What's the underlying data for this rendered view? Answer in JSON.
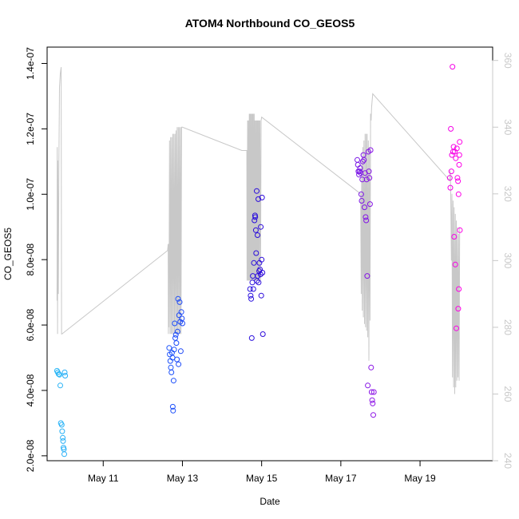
{
  "chart_data": {
    "type": "scatter",
    "title": "ATOM4 Northbound CO_GEOS5",
    "xlabel": "Date",
    "ylabel": "CO_GEOS5",
    "x_is_date": true,
    "xlim": [
      "2018-05-09T14:00",
      "2018-05-20T20:00"
    ],
    "x_ticks": [
      {
        "label": "May 11",
        "value": "2018-05-11T00:00"
      },
      {
        "label": "May 13",
        "value": "2018-05-13T00:00"
      },
      {
        "label": "May 15",
        "value": "2018-05-15T00:00"
      },
      {
        "label": "May 17",
        "value": "2018-05-17T00:00"
      },
      {
        "label": "May 19",
        "value": "2018-05-19T00:00"
      }
    ],
    "ylim": [
      1.85e-08,
      1.45e-07
    ],
    "y_ticks": [
      {
        "label": "2.0e-08",
        "value": 2e-08
      },
      {
        "label": "4.0e-08",
        "value": 4e-08
      },
      {
        "label": "6.0e-08",
        "value": 6e-08
      },
      {
        "label": "8.0e-08",
        "value": 8e-08
      },
      {
        "label": "1.0e-07",
        "value": 1e-07
      },
      {
        "label": "1.2e-07",
        "value": 1.2e-07
      },
      {
        "label": "1.4e-07",
        "value": 1.4e-07
      }
    ],
    "y2lim": [
      240,
      364
    ],
    "y2_ticks": [
      {
        "label": "240",
        "value": 240
      },
      {
        "label": "260",
        "value": 260
      },
      {
        "label": "280",
        "value": 280
      },
      {
        "label": "300",
        "value": 300
      },
      {
        "label": "320",
        "value": 320
      },
      {
        "label": "340",
        "value": 340
      },
      {
        "label": "360",
        "value": 360
      }
    ],
    "grid": false,
    "colors": {
      "line": "#c8c8c8",
      "points_gradient": [
        "#29b6f6",
        "#1a5cff",
        "#2b0bdb",
        "#7a16e6",
        "#ff00e6"
      ]
    },
    "points": [
      [
        "2018-05-09T20:00",
        4.6e-08
      ],
      [
        "2018-05-09T20:30",
        4.55e-08
      ],
      [
        "2018-05-09T21:00",
        4.5e-08
      ],
      [
        "2018-05-09T21:30",
        4.48e-08
      ],
      [
        "2018-05-09T22:00",
        4.15e-08
      ],
      [
        "2018-05-09T22:20",
        3e-08
      ],
      [
        "2018-05-09T22:50",
        2.95e-08
      ],
      [
        "2018-05-09T23:10",
        2.75e-08
      ],
      [
        "2018-05-09T23:30",
        2.55e-08
      ],
      [
        "2018-05-09T23:40",
        2.45e-08
      ],
      [
        "2018-05-09T23:55",
        2.25e-08
      ],
      [
        "2018-05-10T00:10",
        2.2e-08
      ],
      [
        "2018-05-10T00:25",
        2.05e-08
      ],
      [
        "2018-05-10T00:40",
        4.55e-08
      ],
      [
        "2018-05-10T00:55",
        4.45e-08
      ],
      [
        "2018-05-12T16:00",
        5.3e-08
      ],
      [
        "2018-05-12T16:20",
        5.1e-08
      ],
      [
        "2018-05-12T16:40",
        4.9e-08
      ],
      [
        "2018-05-12T17:00",
        4.7e-08
      ],
      [
        "2018-05-12T17:20",
        4.55e-08
      ],
      [
        "2018-05-12T17:40",
        5.15e-08
      ],
      [
        "2018-05-12T18:00",
        5e-08
      ],
      [
        "2018-05-12T18:10",
        3.5e-08
      ],
      [
        "2018-05-12T18:20",
        3.38e-08
      ],
      [
        "2018-05-12T18:40",
        4.3e-08
      ],
      [
        "2018-05-12T19:00",
        5.25e-08
      ],
      [
        "2018-05-12T19:20",
        6.05e-08
      ],
      [
        "2018-05-12T19:40",
        5.6e-08
      ],
      [
        "2018-05-12T20:00",
        5.7e-08
      ],
      [
        "2018-05-12T20:20",
        5.45e-08
      ],
      [
        "2018-05-12T20:40",
        4.95e-08
      ],
      [
        "2018-05-12T21:00",
        5.8e-08
      ],
      [
        "2018-05-12T21:20",
        6.8e-08
      ],
      [
        "2018-05-12T21:40",
        4.8e-08
      ],
      [
        "2018-05-12T22:00",
        6.3e-08
      ],
      [
        "2018-05-12T22:20",
        6.7e-08
      ],
      [
        "2018-05-12T22:40",
        6.1e-08
      ],
      [
        "2018-05-12T23:00",
        5.2e-08
      ],
      [
        "2018-05-12T23:20",
        6.4e-08
      ],
      [
        "2018-05-12T23:40",
        6.2e-08
      ],
      [
        "2018-05-13T00:00",
        6.05e-08
      ],
      [
        "2018-05-14T17:00",
        7.1e-08
      ],
      [
        "2018-05-14T17:20",
        6.9e-08
      ],
      [
        "2018-05-14T17:40",
        6.8e-08
      ],
      [
        "2018-05-14T18:00",
        5.6e-08
      ],
      [
        "2018-05-14T18:20",
        7.3e-08
      ],
      [
        "2018-05-14T18:40",
        7.5e-08
      ],
      [
        "2018-05-14T19:00",
        7.1e-08
      ],
      [
        "2018-05-14T19:20",
        7.9e-08
      ],
      [
        "2018-05-14T19:40",
        9.2e-08
      ],
      [
        "2018-05-14T20:00",
        9.35e-08
      ],
      [
        "2018-05-14T20:10",
        9.3e-08
      ],
      [
        "2018-05-14T20:30",
        8.9e-08
      ],
      [
        "2018-05-14T20:40",
        8.2e-08
      ],
      [
        "2018-05-14T21:00",
        1.01e-07
      ],
      [
        "2018-05-14T21:10",
        7.35e-08
      ],
      [
        "2018-05-14T21:30",
        8.75e-08
      ],
      [
        "2018-05-14T21:40",
        7.5e-08
      ],
      [
        "2018-05-14T22:00",
        9.85e-08
      ],
      [
        "2018-05-14T22:10",
        7.3e-08
      ],
      [
        "2018-05-14T22:30",
        7.65e-08
      ],
      [
        "2018-05-14T22:40",
        7.9e-08
      ],
      [
        "2018-05-14T23:00",
        7.7e-08
      ],
      [
        "2018-05-14T23:20",
        7.55e-08
      ],
      [
        "2018-05-14T23:30",
        9e-08
      ],
      [
        "2018-05-14T23:45",
        6.9e-08
      ],
      [
        "2018-05-15T00:00",
        8e-08
      ],
      [
        "2018-05-15T00:15",
        9.9e-08
      ],
      [
        "2018-05-15T00:30",
        7.6e-08
      ],
      [
        "2018-05-15T00:45",
        5.72e-08
      ],
      [
        "2018-05-17T10:00",
        1.105e-07
      ],
      [
        "2018-05-17T10:20",
        1.09e-07
      ],
      [
        "2018-05-17T10:40",
        1.07e-07
      ],
      [
        "2018-05-17T11:00",
        1.06e-07
      ],
      [
        "2018-05-17T11:20",
        1.07e-07
      ],
      [
        "2018-05-17T11:40",
        1.08e-07
      ],
      [
        "2018-05-17T12:00",
        1.065e-07
      ],
      [
        "2018-05-17T12:20",
        1e-07
      ],
      [
        "2018-05-17T12:40",
        9.8e-08
      ],
      [
        "2018-05-17T13:00",
        1.045e-07
      ],
      [
        "2018-05-17T13:20",
        1.1e-07
      ],
      [
        "2018-05-17T13:40",
        1.12e-07
      ],
      [
        "2018-05-17T14:00",
        1.105e-07
      ],
      [
        "2018-05-17T14:20",
        9.6e-08
      ],
      [
        "2018-05-17T14:40",
        1.065e-07
      ],
      [
        "2018-05-17T15:00",
        9.3e-08
      ],
      [
        "2018-05-17T15:20",
        9.2e-08
      ],
      [
        "2018-05-17T15:40",
        1.045e-07
      ],
      [
        "2018-05-17T16:00",
        7.5e-08
      ],
      [
        "2018-05-17T16:20",
        4.15e-08
      ],
      [
        "2018-05-17T16:40",
        1.13e-07
      ],
      [
        "2018-05-17T17:00",
        1.07e-07
      ],
      [
        "2018-05-17T17:20",
        1.05e-07
      ],
      [
        "2018-05-17T17:40",
        9.7e-08
      ],
      [
        "2018-05-17T18:00",
        1.135e-07
      ],
      [
        "2018-05-17T18:20",
        4.7e-08
      ],
      [
        "2018-05-17T18:40",
        3.95e-08
      ],
      [
        "2018-05-17T19:00",
        3.7e-08
      ],
      [
        "2018-05-17T19:20",
        3.6e-08
      ],
      [
        "2018-05-17T19:40",
        3.25e-08
      ],
      [
        "2018-05-17T20:00",
        3.95e-08
      ],
      [
        "2018-05-19T18:00",
        1.05e-07
      ],
      [
        "2018-05-19T18:20",
        1.02e-07
      ],
      [
        "2018-05-19T18:40",
        1.2e-07
      ],
      [
        "2018-05-19T19:00",
        1.07e-07
      ],
      [
        "2018-05-19T19:20",
        1.12e-07
      ],
      [
        "2018-05-19T19:40",
        1.39e-07
      ],
      [
        "2018-05-19T20:00",
        1.13e-07
      ],
      [
        "2018-05-19T20:20",
        1.145e-07
      ],
      [
        "2018-05-19T20:40",
        8.7e-08
      ],
      [
        "2018-05-19T21:00",
        1.13e-07
      ],
      [
        "2018-05-19T21:20",
        7.85e-08
      ],
      [
        "2018-05-19T21:40",
        1.11e-07
      ],
      [
        "2018-05-19T22:00",
        5.9e-08
      ],
      [
        "2018-05-19T22:20",
        1.14e-07
      ],
      [
        "2018-05-19T22:40",
        1.05e-07
      ],
      [
        "2018-05-19T23:00",
        1.04e-07
      ],
      [
        "2018-05-19T23:10",
        6.5e-08
      ],
      [
        "2018-05-19T23:20",
        1e-07
      ],
      [
        "2018-05-19T23:30",
        7.1e-08
      ],
      [
        "2018-05-19T23:40",
        1.09e-07
      ],
      [
        "2018-05-19T23:50",
        1.12e-07
      ],
      [
        "2018-05-20T00:00",
        1.16e-07
      ],
      [
        "2018-05-20T00:10",
        8.9e-08
      ]
    ],
    "line": [
      [
        "2018-05-09T20:00",
        288
      ],
      [
        "2018-05-09T20:10",
        334
      ],
      [
        "2018-05-09T20:20",
        278
      ],
      [
        "2018-05-09T20:30",
        330
      ],
      [
        "2018-05-09T20:50",
        290
      ],
      [
        "2018-05-09T21:10",
        330
      ],
      [
        "2018-05-09T21:30",
        352
      ],
      [
        "2018-05-09T22:00",
        356
      ],
      [
        "2018-05-09T22:30",
        358
      ],
      [
        "2018-05-09T22:45",
        278
      ],
      [
        "2018-05-09T23:00",
        278
      ],
      [
        "2018-05-12T15:00",
        303
      ],
      [
        "2018-05-12T15:20",
        305
      ],
      [
        "2018-05-12T15:30",
        278
      ],
      [
        "2018-05-12T15:40",
        305
      ],
      [
        "2018-05-12T15:50",
        280
      ],
      [
        "2018-05-12T16:10",
        336
      ],
      [
        "2018-05-12T16:30",
        278
      ],
      [
        "2018-05-12T16:50",
        337
      ],
      [
        "2018-05-12T17:10",
        278
      ],
      [
        "2018-05-12T17:30",
        337
      ],
      [
        "2018-05-12T17:50",
        278
      ],
      [
        "2018-05-12T18:10",
        338
      ],
      [
        "2018-05-12T18:30",
        278
      ],
      [
        "2018-05-12T18:50",
        338
      ],
      [
        "2018-05-12T19:10",
        278
      ],
      [
        "2018-05-12T19:30",
        338
      ],
      [
        "2018-05-12T19:50",
        278
      ],
      [
        "2018-05-12T20:10",
        339
      ],
      [
        "2018-05-12T20:30",
        278
      ],
      [
        "2018-05-12T20:50",
        340
      ],
      [
        "2018-05-12T21:10",
        278
      ],
      [
        "2018-05-12T21:30",
        340
      ],
      [
        "2018-05-12T21:50",
        278
      ],
      [
        "2018-05-12T22:10",
        340
      ],
      [
        "2018-05-12T22:30",
        278
      ],
      [
        "2018-05-12T22:50",
        340
      ],
      [
        "2018-05-12T23:10",
        278
      ],
      [
        "2018-05-12T23:30",
        340
      ],
      [
        "2018-05-13T00:00",
        340
      ],
      [
        "2018-05-14T12:00",
        333
      ],
      [
        "2018-05-14T15:00",
        333
      ],
      [
        "2018-05-14T15:10",
        294
      ],
      [
        "2018-05-14T15:30",
        342
      ],
      [
        "2018-05-14T15:40",
        294
      ],
      [
        "2018-05-14T16:00",
        342
      ],
      [
        "2018-05-14T16:10",
        294
      ],
      [
        "2018-05-14T16:30",
        344
      ],
      [
        "2018-05-14T16:40",
        294
      ],
      [
        "2018-05-14T17:00",
        344
      ],
      [
        "2018-05-14T17:10",
        294
      ],
      [
        "2018-05-14T17:30",
        344
      ],
      [
        "2018-05-14T17:40",
        294
      ],
      [
        "2018-05-14T18:00",
        344
      ],
      [
        "2018-05-14T18:10",
        294
      ],
      [
        "2018-05-14T18:30",
        344
      ],
      [
        "2018-05-14T18:40",
        294
      ],
      [
        "2018-05-14T19:00",
        344
      ],
      [
        "2018-05-14T19:10",
        294
      ],
      [
        "2018-05-14T19:30",
        344
      ],
      [
        "2018-05-14T19:40",
        294
      ],
      [
        "2018-05-14T20:00",
        342
      ],
      [
        "2018-05-14T20:10",
        294
      ],
      [
        "2018-05-14T20:30",
        342
      ],
      [
        "2018-05-14T20:40",
        294
      ],
      [
        "2018-05-14T21:00",
        342
      ],
      [
        "2018-05-14T21:10",
        294
      ],
      [
        "2018-05-14T21:30",
        342
      ],
      [
        "2018-05-14T21:40",
        294
      ],
      [
        "2018-05-14T22:00",
        342
      ],
      [
        "2018-05-14T22:10",
        294
      ],
      [
        "2018-05-14T22:30",
        342
      ],
      [
        "2018-05-14T22:40",
        294
      ],
      [
        "2018-05-14T23:00",
        342
      ],
      [
        "2018-05-14T23:20",
        294
      ],
      [
        "2018-05-14T23:40",
        342
      ],
      [
        "2018-05-15T00:00",
        343
      ],
      [
        "2018-05-17T12:00",
        320
      ],
      [
        "2018-05-17T12:20",
        290
      ],
      [
        "2018-05-17T12:40",
        330
      ],
      [
        "2018-05-17T13:00",
        285
      ],
      [
        "2018-05-17T13:20",
        334
      ],
      [
        "2018-05-17T13:40",
        283
      ],
      [
        "2018-05-17T14:00",
        336
      ],
      [
        "2018-05-17T14:20",
        281
      ],
      [
        "2018-05-17T14:40",
        338
      ],
      [
        "2018-05-17T15:00",
        280
      ],
      [
        "2018-05-17T15:20",
        338
      ],
      [
        "2018-05-17T15:40",
        279
      ],
      [
        "2018-05-17T16:00",
        338
      ],
      [
        "2018-05-17T16:20",
        277
      ],
      [
        "2018-05-17T16:40",
        336
      ],
      [
        "2018-05-17T17:00",
        270
      ],
      [
        "2018-05-17T17:20",
        334
      ],
      [
        "2018-05-17T17:40",
        282
      ],
      [
        "2018-05-17T18:00",
        344
      ],
      [
        "2018-05-17T18:20",
        342
      ],
      [
        "2018-05-17T18:40",
        346
      ],
      [
        "2018-05-17T19:00",
        348
      ],
      [
        "2018-05-17T19:20",
        350
      ],
      [
        "2018-05-19T18:00",
        324
      ],
      [
        "2018-05-19T18:20",
        327
      ],
      [
        "2018-05-19T18:40",
        318
      ],
      [
        "2018-05-19T19:00",
        300
      ],
      [
        "2018-05-19T19:20",
        320
      ],
      [
        "2018-05-19T19:40",
        265
      ],
      [
        "2018-05-19T20:00",
        318
      ],
      [
        "2018-05-19T20:20",
        262
      ],
      [
        "2018-05-19T20:40",
        316
      ],
      [
        "2018-05-19T21:00",
        260
      ],
      [
        "2018-05-19T21:20",
        314
      ],
      [
        "2018-05-19T21:40",
        262
      ],
      [
        "2018-05-19T22:00",
        312
      ],
      [
        "2018-05-19T22:20",
        264
      ],
      [
        "2018-05-19T22:40",
        310
      ],
      [
        "2018-05-19T23:00",
        265
      ],
      [
        "2018-05-19T23:20",
        308
      ],
      [
        "2018-05-19T23:40",
        264
      ],
      [
        "2018-05-20T00:00",
        310
      ]
    ]
  }
}
